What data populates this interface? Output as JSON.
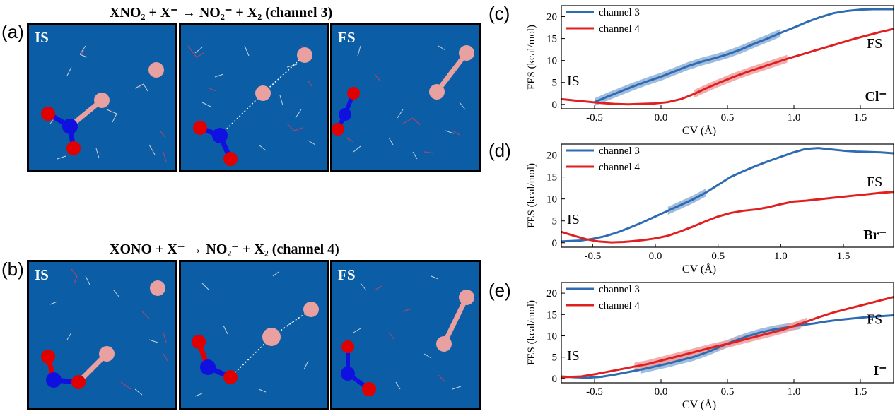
{
  "row_a": {
    "label": "(a)",
    "title": "XNO₂ + X⁻ → NO₂⁻ + X₂ (channel 3)",
    "panels": [
      "IS",
      "",
      "FS"
    ]
  },
  "row_b": {
    "label": "(b)",
    "title": "XONO + X⁻ → NO₂⁻ + X₂ (channel 4)",
    "panels": [
      "IS",
      "",
      "FS"
    ]
  },
  "colors": {
    "water": "#0b5ea6",
    "halogen": "#e8a0a0",
    "nitrogen": "#1010e0",
    "oxygen": "#e00000",
    "channel3": "#2e6bb0",
    "channel4": "#e02020"
  },
  "chart_data": [
    {
      "id": "c",
      "panel_label": "(c)",
      "type": "line",
      "ion": "Cl⁻",
      "xlabel": "CV (Å)",
      "ylabel": "FES (kcal/mol)",
      "xlim": [
        -0.75,
        1.75
      ],
      "ylim": [
        -1,
        22.5
      ],
      "xticks": [
        -0.5,
        0.0,
        0.5,
        1.0,
        1.5
      ],
      "xticklabels": [
        "-0.5",
        "0.0",
        "0.5",
        "1.0",
        "1.5"
      ],
      "yticks": [
        0,
        5,
        10,
        15,
        20
      ],
      "yticklabels": [
        "0",
        "5",
        "10",
        "15",
        "20"
      ],
      "annotations": {
        "is": "IS",
        "fs": "FS"
      },
      "series": [
        {
          "name": "channel 3",
          "x": [
            -0.5,
            -0.4,
            -0.3,
            -0.2,
            -0.1,
            0.0,
            0.1,
            0.2,
            0.3,
            0.4,
            0.5,
            0.6,
            0.7,
            0.8,
            0.9,
            1.0,
            1.1,
            1.2,
            1.3,
            1.4,
            1.5,
            1.6,
            1.7,
            1.75
          ],
          "y": [
            0.5,
            1.8,
            3.0,
            4.2,
            5.3,
            6.3,
            7.5,
            8.7,
            9.7,
            10.5,
            11.4,
            12.5,
            13.8,
            15.0,
            16.3,
            17.5,
            18.8,
            19.9,
            20.8,
            21.3,
            21.6,
            21.7,
            21.7,
            21.7
          ],
          "band": [
            -0.5,
            0.95
          ]
        },
        {
          "name": "channel 4",
          "x": [
            -0.75,
            -0.65,
            -0.55,
            -0.45,
            -0.35,
            -0.25,
            -0.15,
            -0.05,
            0.05,
            0.15,
            0.25,
            0.35,
            0.45,
            0.55,
            0.65,
            0.75,
            0.85,
            0.95,
            1.05,
            1.15,
            1.25,
            1.35,
            1.45,
            1.55,
            1.65,
            1.75
          ],
          "y": [
            1.2,
            0.9,
            0.6,
            0.3,
            0.1,
            0.0,
            0.1,
            0.2,
            0.5,
            1.2,
            2.4,
            3.8,
            5.1,
            6.3,
            7.4,
            8.4,
            9.4,
            10.4,
            11.3,
            12.2,
            13.1,
            14.0,
            14.9,
            15.7,
            16.5,
            17.2
          ],
          "band": [
            0.25,
            0.95
          ]
        }
      ]
    },
    {
      "id": "d",
      "panel_label": "(d)",
      "type": "line",
      "ion": "Br⁻",
      "xlabel": "CV (Å)",
      "ylabel": "FES (kcal/mol)",
      "xlim": [
        -0.75,
        1.9
      ],
      "ylim": [
        -1,
        22.5
      ],
      "xticks": [
        -0.5,
        0.0,
        0.5,
        1.0,
        1.5
      ],
      "xticklabels": [
        "-0.5",
        "0.0",
        "0.5",
        "1.0",
        "1.5"
      ],
      "yticks": [
        0,
        5,
        10,
        15,
        20
      ],
      "yticklabels": [
        "0",
        "5",
        "10",
        "15",
        "20"
      ],
      "annotations": {
        "is": "IS",
        "fs": "FS"
      },
      "series": [
        {
          "name": "channel 3",
          "x": [
            -0.75,
            -0.6,
            -0.5,
            -0.4,
            -0.3,
            -0.2,
            -0.1,
            0.0,
            0.1,
            0.2,
            0.3,
            0.4,
            0.5,
            0.6,
            0.7,
            0.8,
            0.9,
            1.0,
            1.1,
            1.2,
            1.3,
            1.4,
            1.5,
            1.6,
            1.7,
            1.8,
            1.9
          ],
          "y": [
            0.3,
            0.5,
            0.9,
            1.5,
            2.4,
            3.5,
            4.7,
            6.0,
            7.3,
            8.6,
            9.9,
            11.4,
            13.2,
            15.0,
            16.3,
            17.5,
            18.6,
            19.6,
            20.6,
            21.4,
            21.6,
            21.3,
            21.0,
            20.8,
            20.7,
            20.6,
            20.4
          ],
          "band": [
            0.1,
            0.45
          ]
        },
        {
          "name": "channel 4",
          "x": [
            -0.75,
            -0.65,
            -0.55,
            -0.45,
            -0.35,
            -0.25,
            -0.1,
            0.0,
            0.1,
            0.2,
            0.3,
            0.4,
            0.5,
            0.6,
            0.7,
            0.8,
            0.9,
            1.0,
            1.1,
            1.2,
            1.3,
            1.4,
            1.5,
            1.6,
            1.7,
            1.8,
            1.9
          ],
          "y": [
            2.5,
            1.6,
            0.8,
            0.3,
            0.1,
            0.2,
            0.6,
            1.0,
            1.6,
            2.6,
            3.7,
            4.9,
            6.0,
            6.8,
            7.3,
            7.6,
            8.1,
            8.8,
            9.4,
            9.6,
            9.9,
            10.2,
            10.5,
            10.8,
            11.1,
            11.4,
            11.6
          ],
          "band": null
        }
      ]
    },
    {
      "id": "e",
      "panel_label": "(e)",
      "type": "line",
      "ion": "I⁻",
      "xlabel": "CV (Å)",
      "ylabel": "FES (kcal/mol)",
      "xlim": [
        -0.75,
        1.75
      ],
      "ylim": [
        -1,
        22.5
      ],
      "xticks": [
        -0.5,
        0.0,
        0.5,
        1.0,
        1.5
      ],
      "xticklabels": [
        "-0.5",
        "0.0",
        "0.5",
        "1.0",
        "1.5"
      ],
      "yticks": [
        0,
        5,
        10,
        15,
        20
      ],
      "yticklabels": [
        "0",
        "5",
        "10",
        "15",
        "20"
      ],
      "annotations": {
        "is": "IS",
        "fs": "FS"
      },
      "series": [
        {
          "name": "channel 3",
          "x": [
            -0.75,
            -0.65,
            -0.55,
            -0.45,
            -0.35,
            -0.25,
            -0.15,
            -0.05,
            0.05,
            0.15,
            0.25,
            0.35,
            0.45,
            0.55,
            0.65,
            0.75,
            0.85,
            0.95,
            1.05,
            1.15,
            1.25,
            1.35,
            1.45,
            1.55,
            1.65,
            1.75
          ],
          "y": [
            0.5,
            0.3,
            0.2,
            0.4,
            0.9,
            1.5,
            2.1,
            2.8,
            3.5,
            4.3,
            5.1,
            6.2,
            7.5,
            8.8,
            9.9,
            10.8,
            11.5,
            12.0,
            12.5,
            12.9,
            13.4,
            13.8,
            14.1,
            14.4,
            14.6,
            14.8
          ],
          "band": [
            -0.2,
            1.1
          ]
        },
        {
          "name": "channel 4",
          "x": [
            -0.75,
            -0.6,
            -0.5,
            -0.4,
            -0.3,
            -0.2,
            -0.1,
            0.0,
            0.1,
            0.2,
            0.3,
            0.4,
            0.5,
            0.6,
            0.7,
            0.8,
            0.9,
            1.0,
            1.1,
            1.2,
            1.3,
            1.4,
            1.5,
            1.6,
            1.7,
            1.75
          ],
          "y": [
            0.3,
            0.5,
            1.0,
            1.6,
            2.2,
            2.8,
            3.4,
            4.2,
            5.0,
            5.8,
            6.6,
            7.4,
            8.1,
            8.9,
            9.7,
            10.5,
            11.3,
            12.3,
            13.4,
            14.5,
            15.5,
            16.3,
            17.1,
            17.9,
            18.7,
            19.1
          ],
          "band": [
            -0.2,
            1.1
          ]
        }
      ]
    }
  ]
}
